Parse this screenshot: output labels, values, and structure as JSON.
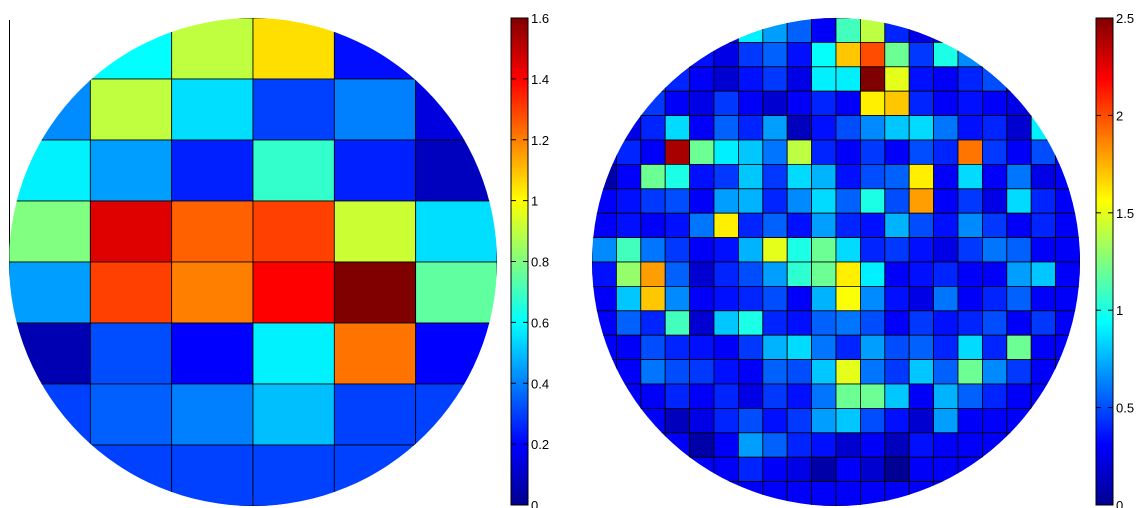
{
  "chart_data": [
    {
      "type": "heatmap",
      "name": "coarse-wafer-map",
      "mask": "circle",
      "rows": 8,
      "cols": 6,
      "colormap": "jet",
      "clim": [
        0,
        1.6
      ],
      "colorbar_ticks": [
        "0",
        "0.2",
        "0.4",
        "0.6",
        "0.8",
        "1",
        "1.2",
        "1.4",
        "1.6"
      ],
      "values": [
        [
          0.32,
          0.6,
          0.9,
          1.05,
          0.22,
          0.22
        ],
        [
          0.42,
          0.9,
          0.55,
          0.3,
          0.4,
          0.15
        ],
        [
          0.58,
          0.45,
          0.25,
          0.68,
          0.25,
          0.1
        ],
        [
          0.8,
          1.45,
          1.25,
          1.3,
          0.92,
          0.55
        ],
        [
          0.45,
          1.3,
          1.2,
          1.4,
          1.6,
          0.75
        ],
        [
          0.08,
          0.32,
          0.2,
          0.58,
          1.22,
          0.2
        ],
        [
          0.3,
          0.35,
          0.4,
          0.5,
          0.3,
          0.3
        ],
        [
          0.3,
          0.3,
          0.3,
          0.3,
          0.3,
          0.3
        ]
      ]
    },
    {
      "type": "heatmap",
      "name": "fine-wafer-map",
      "mask": "circle",
      "rows": 20,
      "cols": 20,
      "colormap": "jet",
      "clim": [
        0,
        2.5
      ],
      "colorbar_ticks": [
        "0",
        "0.5",
        "1",
        "1.5",
        "2",
        "2.5"
      ],
      "values": [
        [
          0.3,
          0.3,
          0.3,
          0.3,
          0.3,
          0.3,
          0.9,
          0.7,
          0.55,
          0.3,
          1.1,
          1.4,
          0.4,
          0.25,
          0.2,
          0.3,
          0.3,
          0.3,
          0.3,
          0.3
        ],
        [
          0.3,
          0.3,
          0.3,
          0.3,
          0.35,
          0.25,
          0.45,
          0.55,
          0.35,
          0.95,
          1.7,
          2.0,
          1.2,
          0.45,
          1.0,
          0.65,
          0.4,
          0.3,
          0.3,
          0.3
        ],
        [
          0.3,
          0.3,
          0.6,
          0.4,
          0.3,
          0.2,
          0.35,
          0.45,
          0.25,
          0.9,
          0.9,
          2.5,
          1.5,
          0.35,
          0.3,
          0.4,
          0.5,
          0.3,
          0.3,
          0.3
        ],
        [
          0.3,
          1.1,
          0.45,
          0.3,
          0.25,
          0.45,
          0.3,
          0.2,
          0.3,
          0.4,
          0.3,
          1.6,
          1.7,
          0.4,
          0.3,
          0.35,
          0.3,
          0.25,
          0.3,
          0.3
        ],
        [
          0.3,
          0.25,
          0.4,
          0.85,
          0.3,
          0.55,
          0.4,
          0.7,
          0.15,
          0.35,
          0.5,
          0.65,
          0.8,
          0.85,
          0.6,
          0.35,
          0.4,
          0.2,
          0.9,
          0.3
        ],
        [
          0.3,
          0.4,
          0.3,
          2.4,
          1.2,
          0.9,
          0.8,
          0.6,
          1.4,
          0.4,
          0.3,
          0.45,
          0.3,
          0.5,
          0.4,
          1.9,
          0.45,
          0.3,
          0.5,
          0.3
        ],
        [
          0.1,
          0.3,
          1.2,
          1.0,
          0.35,
          0.45,
          0.8,
          0.45,
          0.85,
          0.75,
          0.35,
          0.5,
          0.55,
          1.6,
          0.3,
          0.85,
          0.3,
          0.6,
          0.25,
          0.3
        ],
        [
          0.3,
          0.35,
          0.45,
          0.5,
          0.3,
          0.7,
          0.75,
          0.4,
          0.65,
          0.85,
          0.55,
          1.0,
          0.5,
          1.8,
          0.3,
          0.45,
          0.25,
          0.85,
          0.4,
          0.3
        ],
        [
          0.3,
          0.35,
          0.3,
          0.35,
          0.6,
          1.6,
          0.4,
          0.55,
          0.35,
          0.7,
          0.4,
          0.35,
          0.75,
          0.5,
          0.35,
          0.65,
          0.45,
          0.3,
          0.4,
          0.3
        ],
        [
          0.65,
          1.1,
          0.6,
          0.45,
          0.3,
          0.35,
          0.75,
          1.5,
          1.0,
          1.2,
          0.85,
          0.4,
          0.45,
          0.35,
          0.25,
          0.45,
          0.6,
          0.55,
          0.3,
          0.3
        ],
        [
          0.35,
          1.3,
          1.8,
          0.55,
          0.2,
          0.4,
          0.5,
          0.7,
          1.05,
          1.2,
          1.6,
          0.9,
          0.3,
          0.35,
          0.4,
          0.3,
          0.3,
          0.7,
          0.8,
          0.3
        ],
        [
          0.3,
          0.8,
          1.7,
          0.65,
          0.3,
          0.35,
          0.4,
          0.5,
          0.3,
          0.75,
          1.55,
          0.65,
          0.35,
          0.25,
          0.6,
          0.3,
          0.4,
          0.55,
          0.3,
          0.3
        ],
        [
          0.3,
          0.55,
          0.4,
          1.1,
          0.2,
          0.8,
          1.0,
          0.4,
          0.35,
          0.55,
          0.6,
          0.5,
          0.3,
          0.45,
          0.35,
          0.4,
          0.5,
          0.3,
          0.45,
          0.3
        ],
        [
          0.3,
          0.3,
          0.5,
          0.4,
          0.35,
          0.3,
          0.45,
          0.75,
          0.85,
          0.6,
          0.4,
          0.7,
          0.5,
          0.55,
          0.4,
          0.85,
          0.4,
          1.2,
          0.3,
          0.3
        ],
        [
          0.3,
          0.3,
          0.6,
          0.5,
          0.45,
          0.35,
          0.3,
          0.55,
          0.5,
          0.8,
          1.5,
          0.6,
          0.45,
          0.8,
          0.55,
          1.2,
          0.65,
          0.45,
          0.3,
          0.3
        ],
        [
          0.3,
          0.3,
          0.3,
          0.4,
          0.3,
          0.4,
          0.25,
          0.45,
          0.35,
          0.6,
          1.2,
          1.2,
          0.8,
          0.3,
          0.75,
          0.55,
          0.4,
          0.3,
          0.3,
          0.3
        ],
        [
          0.3,
          0.3,
          0.3,
          0.15,
          0.25,
          0.4,
          0.5,
          0.35,
          0.45,
          0.7,
          0.8,
          0.5,
          0.35,
          0.2,
          0.7,
          0.3,
          0.3,
          0.3,
          0.3,
          0.3
        ],
        [
          0.3,
          0.3,
          0.3,
          0.3,
          0.1,
          0.3,
          0.7,
          0.55,
          0.4,
          0.35,
          0.2,
          0.3,
          0.15,
          0.35,
          0.3,
          0.3,
          0.3,
          0.3,
          0.3,
          0.3
        ],
        [
          0.3,
          0.3,
          0.3,
          0.3,
          0.3,
          0.3,
          0.4,
          0.3,
          0.25,
          0.1,
          0.3,
          0.2,
          0.05,
          0.3,
          0.3,
          0.3,
          0.3,
          0.3,
          0.3,
          0.3
        ],
        [
          0.3,
          0.3,
          0.3,
          0.3,
          0.3,
          0.3,
          0.3,
          0.3,
          0.3,
          0.3,
          0.3,
          0.3,
          0.3,
          0.3,
          0.3,
          0.3,
          0.3,
          0.3,
          0.3,
          0.3
        ]
      ]
    }
  ]
}
